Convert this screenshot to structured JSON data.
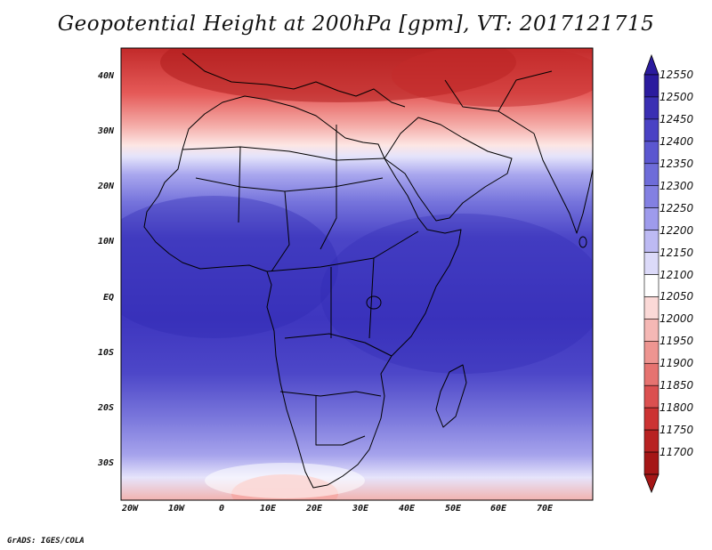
{
  "title": "Geopotential Height at 200hPa [gpm], VT: 2017121715",
  "credit": "GrADS: IGES/COLA",
  "lat_labels": [
    "40N",
    "30N",
    "20N",
    "10N",
    "EQ",
    "10S",
    "20S",
    "30S"
  ],
  "lon_labels": [
    "20W",
    "10W",
    "0",
    "10E",
    "20E",
    "30E",
    "40E",
    "50E",
    "60E",
    "70E"
  ],
  "colorbar": {
    "levels": [
      "12550",
      "12500",
      "12450",
      "12400",
      "12350",
      "12300",
      "12250",
      "12200",
      "12150",
      "12100",
      "12050",
      "12000",
      "11950",
      "11900",
      "11850",
      "11800",
      "11750",
      "11700"
    ],
    "colors": [
      "#2b1b9e",
      "#3a2fb3",
      "#4a42c4",
      "#5b57d0",
      "#6e6cd9",
      "#8380e2",
      "#9e9bec",
      "#bdbaf3",
      "#dcdaf9",
      "#ffffff",
      "#fbd9d7",
      "#f5b8b5",
      "#ee9591",
      "#e67370",
      "#db5050",
      "#cc3333",
      "#b82222",
      "#a51616"
    ]
  },
  "chart_data": {
    "type": "heatmap",
    "title": "Geopotential Height at 200hPa [gpm], VT: 2017121715",
    "variable": "Geopotential Height at 200hPa",
    "units": "gpm",
    "valid_time": "2017121715",
    "lon_range": [
      -22,
      80
    ],
    "lat_range": [
      -37,
      45
    ],
    "levels": [
      11700,
      11750,
      11800,
      11850,
      11900,
      11950,
      12000,
      12050,
      12100,
      12150,
      12200,
      12250,
      12300,
      12350,
      12400,
      12450,
      12500,
      12550
    ]
  }
}
